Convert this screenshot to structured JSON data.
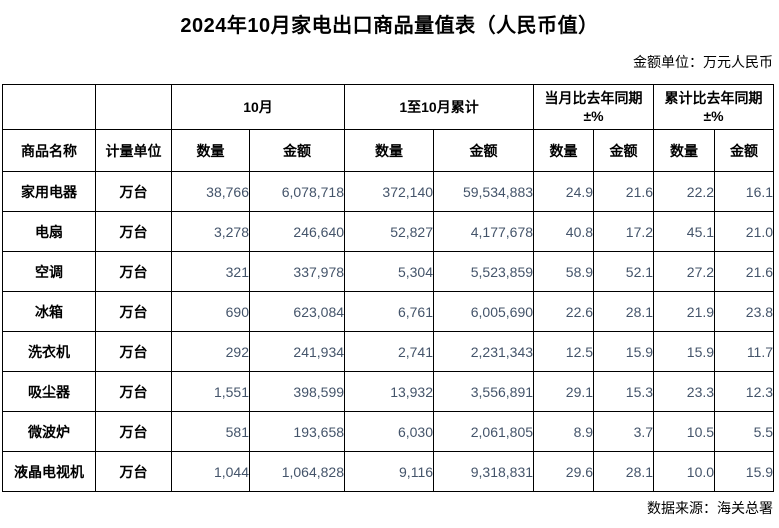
{
  "page": {
    "title": "2024年10月家电出口商品量值表（人民币值）",
    "unit_note": "金额单位：万元人民币",
    "source_note": "数据来源：海关总署"
  },
  "colors": {
    "number_text": "#44546A",
    "border": "#000000"
  },
  "table": {
    "header_groups": {
      "month": "10月",
      "cumulative": "1至10月累计",
      "month_yoy_line1": "当月比去年同期",
      "month_yoy_line2": "±%",
      "cum_yoy_line1": "累计比去年同期",
      "cum_yoy_line2": "±%"
    },
    "sub_headers": {
      "product": "商品名称",
      "unit": "计量单位",
      "qty": "数量",
      "amount": "金额"
    },
    "rows": [
      {
        "product": "家用电器",
        "unit": "万台",
        "m_qty": "38,766",
        "m_amt": "6,078,718",
        "c_qty": "372,140",
        "c_amt": "59,534,883",
        "my_qty": "24.9",
        "my_amt": "21.6",
        "cy_qty": "22.2",
        "cy_amt": "16.1"
      },
      {
        "product": "电扇",
        "unit": "万台",
        "m_qty": "3,278",
        "m_amt": "246,640",
        "c_qty": "52,827",
        "c_amt": "4,177,678",
        "my_qty": "40.8",
        "my_amt": "17.2",
        "cy_qty": "45.1",
        "cy_amt": "21.0"
      },
      {
        "product": "空调",
        "unit": "万台",
        "m_qty": "321",
        "m_amt": "337,978",
        "c_qty": "5,304",
        "c_amt": "5,523,859",
        "my_qty": "58.9",
        "my_amt": "52.1",
        "cy_qty": "27.2",
        "cy_amt": "21.6"
      },
      {
        "product": "冰箱",
        "unit": "万台",
        "m_qty": "690",
        "m_amt": "623,084",
        "c_qty": "6,761",
        "c_amt": "6,005,690",
        "my_qty": "22.6",
        "my_amt": "28.1",
        "cy_qty": "21.9",
        "cy_amt": "23.8"
      },
      {
        "product": "洗衣机",
        "unit": "万台",
        "m_qty": "292",
        "m_amt": "241,934",
        "c_qty": "2,741",
        "c_amt": "2,231,343",
        "my_qty": "12.5",
        "my_amt": "15.9",
        "cy_qty": "15.9",
        "cy_amt": "11.7"
      },
      {
        "product": "吸尘器",
        "unit": "万台",
        "m_qty": "1,551",
        "m_amt": "398,599",
        "c_qty": "13,932",
        "c_amt": "3,556,891",
        "my_qty": "29.1",
        "my_amt": "15.3",
        "cy_qty": "23.3",
        "cy_amt": "12.3"
      },
      {
        "product": "微波炉",
        "unit": "万台",
        "m_qty": "581",
        "m_amt": "193,658",
        "c_qty": "6,030",
        "c_amt": "2,061,805",
        "my_qty": "8.9",
        "my_amt": "3.7",
        "cy_qty": "10.5",
        "cy_amt": "5.5"
      },
      {
        "product": "液晶电视机",
        "unit": "万台",
        "m_qty": "1,044",
        "m_amt": "1,064,828",
        "c_qty": "9,116",
        "c_amt": "9,318,831",
        "my_qty": "29.6",
        "my_amt": "28.1",
        "cy_qty": "10.0",
        "cy_amt": "15.9"
      }
    ]
  }
}
